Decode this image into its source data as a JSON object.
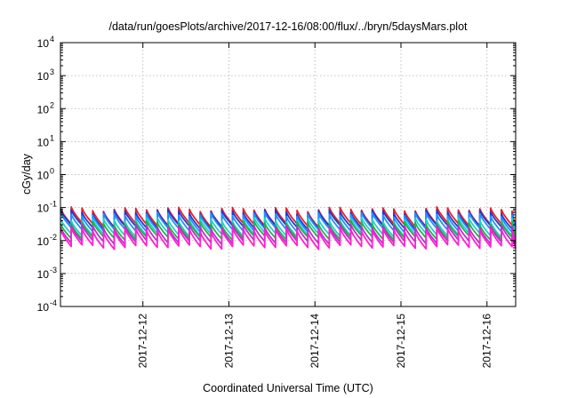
{
  "chart_data": {
    "type": "line",
    "title": "/data/run/goesPlots/archive/2017-12-16/08:00/flux/../bryn/5daysMars.plot",
    "xlabel": "Coordinated Universal Time (UTC)",
    "ylabel": "cGy/day",
    "yscale": "log",
    "ylim": [
      0.0001,
      10000
    ],
    "y_ticks": [
      {
        "base": "10",
        "exp": "-4",
        "value": 0.0001
      },
      {
        "base": "10",
        "exp": "-3",
        "value": 0.001
      },
      {
        "base": "10",
        "exp": "-2",
        "value": 0.01
      },
      {
        "base": "10",
        "exp": "-1",
        "value": 0.1
      },
      {
        "base": "10",
        "exp": "0",
        "value": 1
      },
      {
        "base": "10",
        "exp": "1",
        "value": 10
      },
      {
        "base": "10",
        "exp": "2",
        "value": 100
      },
      {
        "base": "10",
        "exp": "3",
        "value": 1000
      },
      {
        "base": "10",
        "exp": "4",
        "value": 10000
      }
    ],
    "xlim": [
      "2017-12-11 01:00",
      "2017-12-16 08:00"
    ],
    "x_ticks": [
      "2017-12-12",
      "2017-12-13",
      "2017-12-14",
      "2017-12-15",
      "2017-12-16"
    ],
    "grid": true,
    "sawtooth_period_hours": 3,
    "series": [
      {
        "color": "#e8202a",
        "values_peak": 0.09,
        "values_trough": 0.03
      },
      {
        "color": "#2a36c8",
        "values_peak": 0.075,
        "values_trough": 0.026
      },
      {
        "color": "#1f90ff",
        "values_peak": 0.062,
        "values_trough": 0.021
      },
      {
        "color": "#20d0c8",
        "values_peak": 0.043,
        "values_trough": 0.015
      },
      {
        "color": "#22b04a",
        "values_peak": 0.034,
        "values_trough": 0.012
      },
      {
        "color": "#b830c8",
        "values_peak": 0.027,
        "values_trough": 0.009
      },
      {
        "color": "#ff20d0",
        "values_peak": 0.021,
        "values_trough": 0.0065
      }
    ]
  }
}
